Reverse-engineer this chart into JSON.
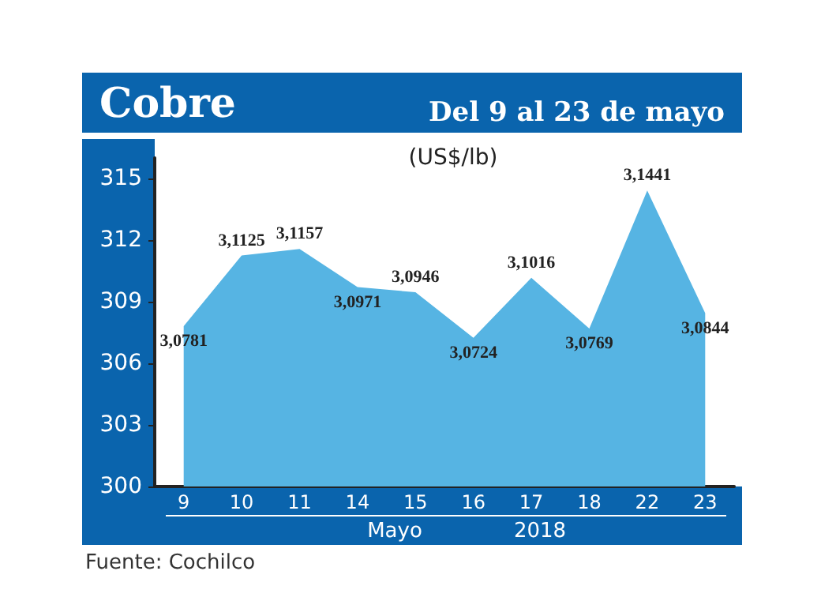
{
  "chart_data": {
    "type": "area",
    "title": "Cobre",
    "subtitle": "Del 9 al 23 de mayo",
    "ylabel": "(US$/lb)",
    "categories": [
      "9",
      "10",
      "11",
      "14",
      "15",
      "16",
      "17",
      "18",
      "22",
      "23"
    ],
    "values": [
      307.81,
      311.25,
      311.57,
      309.71,
      309.46,
      307.24,
      310.16,
      307.69,
      314.41,
      308.44
    ],
    "value_labels": [
      "3,0781",
      "3,1125",
      "3,1157",
      "3,0971",
      "3,0946",
      "3,0724",
      "3,1016",
      "3,0769",
      "3,1441",
      "3,0844"
    ],
    "color": "#56b4e3",
    "ylim": [
      300,
      316
    ],
    "yticks": [
      300,
      303,
      306,
      309,
      312,
      315
    ],
    "annotations": [
      "Mayo",
      "2018",
      "Fuente: Cochilco"
    ],
    "grid": false,
    "marker": "none"
  }
}
